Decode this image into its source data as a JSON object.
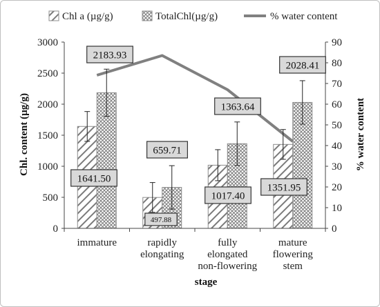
{
  "chart_data": {
    "type": "bar",
    "categories": [
      [
        "immature"
      ],
      [
        "rapidly",
        "elongating"
      ],
      [
        "fully",
        "elongated",
        "non-flowering"
      ],
      [
        "mature",
        "flowering",
        "stem"
      ]
    ],
    "series": [
      {
        "name": "Chl a (µg/g)",
        "pattern": "diagonal-hatch",
        "values": [
          1641.5,
          497.88,
          1017.4,
          1351.95
        ],
        "error": [
          240,
          240,
          250,
          240
        ]
      },
      {
        "name": "TotalChl(µg/g)",
        "pattern": "crosshatch",
        "values": [
          2183.93,
          659.71,
          1363.64,
          2028.41
        ],
        "error": [
          380,
          350,
          350,
          350
        ]
      }
    ],
    "line_series": {
      "name": "% water content",
      "axis": "right",
      "values": [
        74,
        83.5,
        67,
        42
      ]
    },
    "data_labels": [
      "1641.50",
      "497.88",
      "1017.40",
      "1351.95",
      "2183.93",
      "659.71",
      "1363.64",
      "2028.41"
    ],
    "xlabel": "stage",
    "ylabel": "Chl. content (µg/g)",
    "y2label": "% water content",
    "ylim": [
      0,
      3000
    ],
    "y2lim": [
      0,
      90
    ],
    "yticks": [
      "0",
      "500",
      "1000",
      "1500",
      "2000",
      "2500",
      "3000"
    ],
    "y2ticks": [
      "0",
      "10",
      "20",
      "30",
      "40",
      "50",
      "60",
      "70",
      "80",
      "90"
    ],
    "legend_position": "top",
    "grid": false,
    "colors": {
      "bar_pattern": "#777777",
      "line": "#808080",
      "label_box": "#d9d9d9"
    }
  }
}
